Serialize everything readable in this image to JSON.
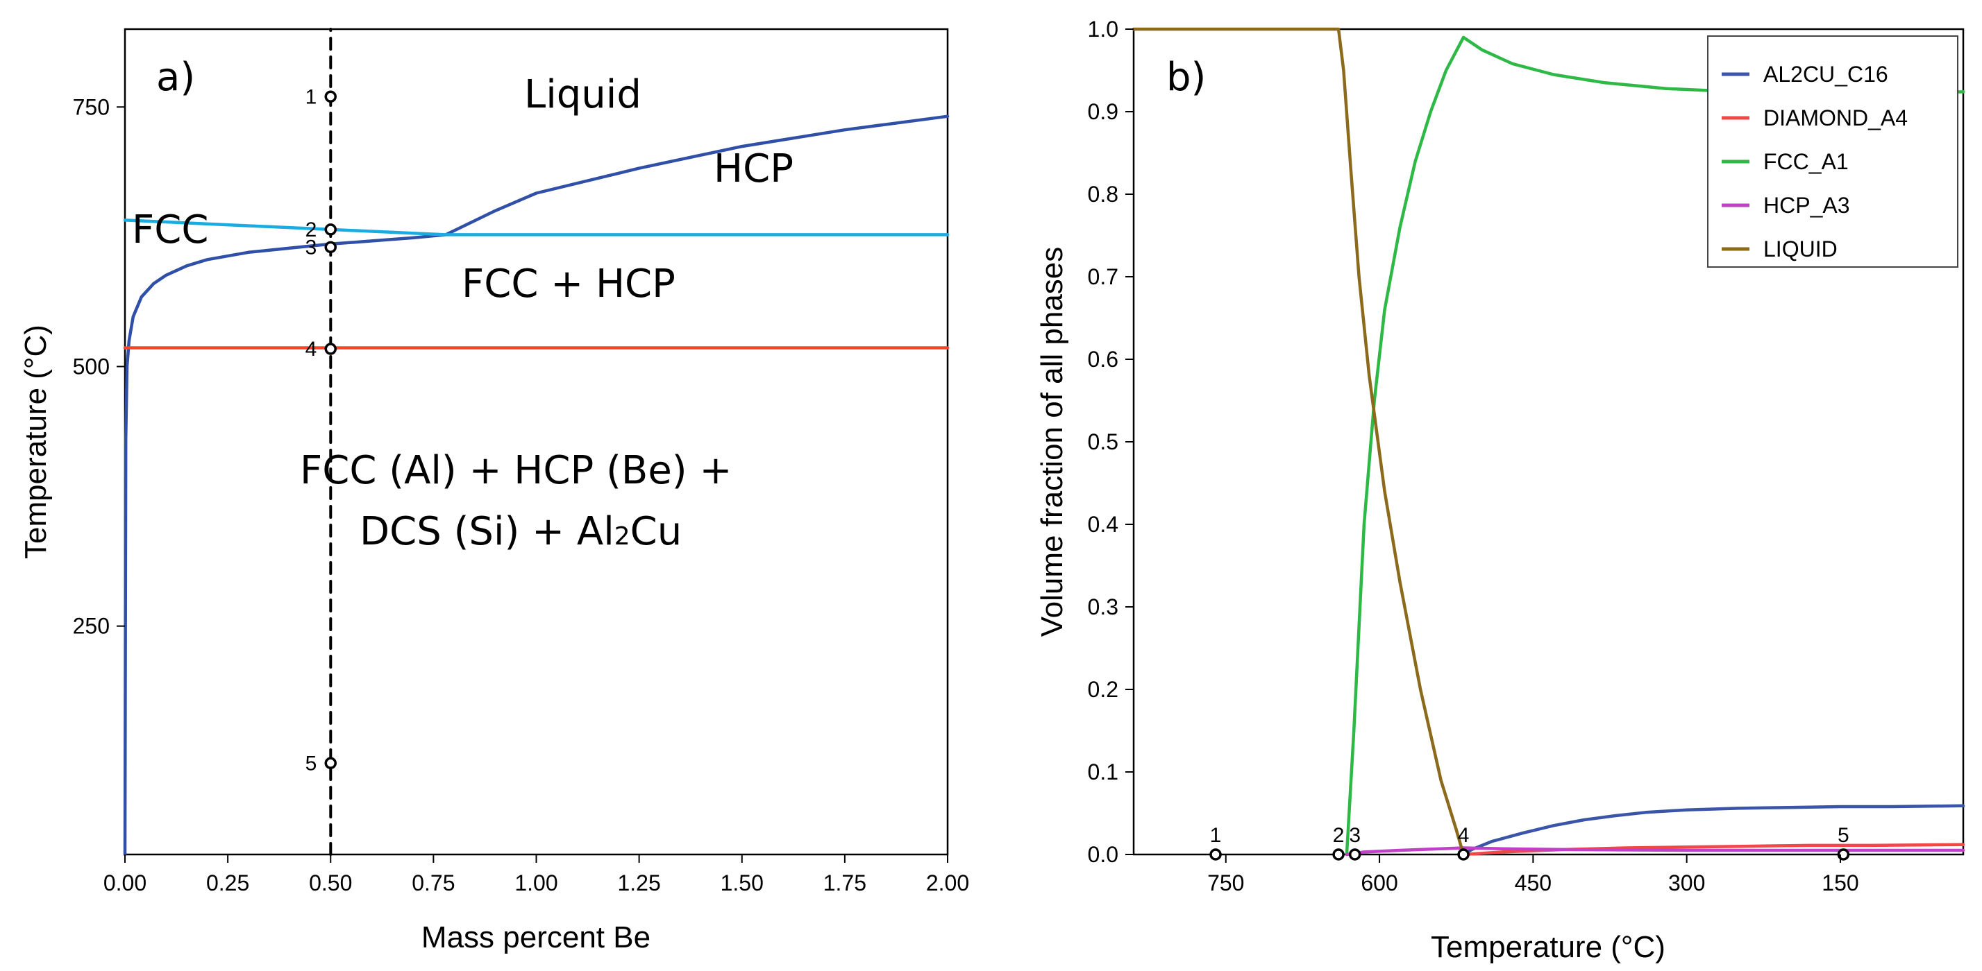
{
  "chart_data": [
    {
      "type": "line",
      "panel_label": "a)",
      "title": "",
      "xlabel": "Mass percent Be",
      "ylabel": "Temperature (°C)",
      "xlim": [
        0,
        2
      ],
      "ylim": [
        30,
        825
      ],
      "xticks": [
        0,
        0.25,
        0.5,
        0.75,
        1.0,
        1.25,
        1.5,
        1.75,
        2.0
      ],
      "xtick_labels": [
        "0.00",
        "0.25",
        "0.50",
        "0.75",
        "1.00",
        "1.25",
        "1.50",
        "1.75",
        "2.00"
      ],
      "yticks": [
        250,
        500,
        750
      ],
      "ytick_labels": [
        "250",
        "500",
        "750"
      ],
      "series": [
        {
          "name": "FCC solvus / liquidus boundary",
          "color": "#3050A8",
          "x": [
            0.0,
            0.002,
            0.005,
            0.01,
            0.02,
            0.04,
            0.07,
            0.1,
            0.15,
            0.2,
            0.3,
            0.4,
            0.5,
            0.6,
            0.7,
            0.78,
            0.9,
            1.0,
            1.25,
            1.5,
            1.75,
            2.0
          ],
          "y": [
            30,
            430,
            500,
            525,
            548,
            567,
            580,
            588,
            597,
            603,
            610,
            614,
            618,
            621,
            624,
            627,
            650,
            667,
            691,
            712,
            728,
            741
          ]
        },
        {
          "name": "Liquidus (FCC)",
          "color": "#1AACE0",
          "x": [
            0.0,
            0.78,
            2.0
          ],
          "y": [
            641,
            627,
            627
          ]
        },
        {
          "name": "Eutectic line",
          "color": "#F5452B",
          "x": [
            0.0,
            2.0
          ],
          "y": [
            518,
            518
          ]
        },
        {
          "name": "Composition 0.5 wt% Be",
          "color": "#000000",
          "dashed": true,
          "x": [
            0.5,
            0.5
          ],
          "y": [
            30,
            825
          ]
        }
      ],
      "points": [
        {
          "label": "1",
          "x": 0.5,
          "y": 760
        },
        {
          "label": "2",
          "x": 0.5,
          "y": 632
        },
        {
          "label": "3",
          "x": 0.5,
          "y": 615
        },
        {
          "label": "4",
          "x": 0.5,
          "y": 517
        },
        {
          "label": "5",
          "x": 0.5,
          "y": 118
        }
      ],
      "annotations": [
        "Liquid",
        "HCP",
        "FCC",
        "FCC + HCP",
        "FCC (Al) + HCP (Be) +",
        "DCS (Si) + Al",
        "2",
        "Cu"
      ]
    },
    {
      "type": "line",
      "panel_label": "b)",
      "title": "",
      "xlabel": "Temperature (°C)",
      "ylabel": "Volume fraction of all phases",
      "xlim": [
        840,
        30
      ],
      "ylim": [
        0,
        1
      ],
      "xticks": [
        750,
        600,
        450,
        300,
        150
      ],
      "xtick_labels": [
        "750",
        "600",
        "450",
        "300",
        "150"
      ],
      "yticks": [
        0,
        0.1,
        0.2,
        0.3,
        0.4,
        0.5,
        0.6,
        0.7,
        0.8,
        0.9,
        1.0
      ],
      "ytick_labels": [
        "0.0",
        "0.1",
        "0.2",
        "0.3",
        "0.4",
        "0.5",
        "0.6",
        "0.7",
        "0.8",
        "0.9",
        "1.0"
      ],
      "legend_position": "top-right",
      "series": [
        {
          "name": "AL2CU_C16",
          "color": "#3A55A8",
          "x": [
            518,
            510,
            490,
            460,
            430,
            400,
            370,
            340,
            300,
            250,
            200,
            150,
            100,
            30
          ],
          "y": [
            0,
            0.006,
            0.016,
            0.026,
            0.035,
            0.042,
            0.047,
            0.051,
            0.054,
            0.056,
            0.057,
            0.058,
            0.058,
            0.059
          ]
        },
        {
          "name": "DIAMOND_A4",
          "color": "#F04848",
          "x": [
            518,
            480,
            420,
            360,
            300,
            240,
            180,
            120,
            30
          ],
          "y": [
            0,
            0.003,
            0.006,
            0.008,
            0.009,
            0.01,
            0.011,
            0.011,
            0.012
          ]
        },
        {
          "name": "FCC_A1",
          "color": "#2EB845",
          "x": [
            632,
            625,
            615,
            605,
            595,
            580,
            565,
            550,
            535,
            518,
            500,
            470,
            430,
            380,
            320,
            250,
            180,
            100,
            30
          ],
          "y": [
            0,
            0.15,
            0.4,
            0.55,
            0.66,
            0.76,
            0.84,
            0.9,
            0.95,
            0.99,
            0.975,
            0.958,
            0.945,
            0.935,
            0.928,
            0.924,
            0.923,
            0.923,
            0.924
          ]
        },
        {
          "name": "HCP_A3",
          "color": "#C040C8",
          "x": [
            632,
            615,
            580,
            540,
            518,
            480,
            420,
            300,
            150,
            30
          ],
          "y": [
            0,
            0.003,
            0.005,
            0.007,
            0.008,
            0.007,
            0.006,
            0.005,
            0.005,
            0.005
          ]
        },
        {
          "name": "LIQUID",
          "color": "#8C6A1C",
          "x": [
            840,
            640,
            635,
            628,
            620,
            610,
            595,
            580,
            560,
            540,
            525,
            518
          ],
          "y": [
            1.0,
            1.0,
            0.95,
            0.83,
            0.7,
            0.58,
            0.44,
            0.33,
            0.2,
            0.09,
            0.03,
            0
          ]
        }
      ],
      "points": [
        {
          "label": "1",
          "x": 760,
          "y": 0
        },
        {
          "label": "2",
          "x": 640,
          "y": 0
        },
        {
          "label": "3",
          "x": 624,
          "y": 0
        },
        {
          "label": "4",
          "x": 518,
          "y": 0
        },
        {
          "label": "5",
          "x": 147,
          "y": 0
        }
      ]
    }
  ]
}
